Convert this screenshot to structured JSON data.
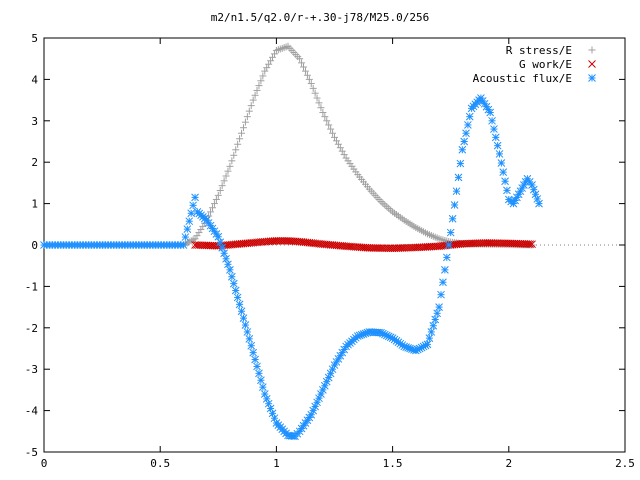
{
  "chart_data": {
    "type": "scatter",
    "title": "m2/n1.5/q2.0/r-+.30-j78/M25.0/256",
    "xlim": [
      0,
      2.5
    ],
    "ylim": [
      -5,
      5
    ],
    "x_ticks": [
      "0",
      "0.5",
      "1",
      "1.5",
      "2",
      "2.5"
    ],
    "y_ticks": [
      "-5",
      "-4",
      "-3",
      "-2",
      "-1",
      "0",
      "1",
      "2",
      "3",
      "4",
      "5"
    ],
    "legend_position": "top-right",
    "grid": false,
    "series": [
      {
        "name": "R stress/E",
        "marker": "plus",
        "color": "#a0a0a0",
        "x": [
          0,
          0.6,
          0.65,
          0.7,
          0.75,
          0.8,
          0.85,
          0.9,
          0.95,
          1.0,
          1.05,
          1.1,
          1.15,
          1.2,
          1.25,
          1.3,
          1.35,
          1.4,
          1.45,
          1.5,
          1.55,
          1.6,
          1.65,
          1.7,
          1.75,
          1.8,
          2.1
        ],
        "y": [
          0,
          0,
          0.15,
          0.6,
          1.2,
          1.9,
          2.7,
          3.5,
          4.2,
          4.7,
          4.8,
          4.5,
          3.9,
          3.2,
          2.6,
          2.1,
          1.7,
          1.35,
          1.05,
          0.8,
          0.6,
          0.42,
          0.27,
          0.15,
          0.07,
          0.03,
          0.0
        ]
      },
      {
        "name": "G work/E",
        "marker": "cross",
        "color": "#cc0000",
        "x": [
          0.65,
          0.75,
          0.85,
          0.95,
          1.0,
          1.05,
          1.1,
          1.15,
          1.2,
          1.3,
          1.4,
          1.5,
          1.6,
          1.7,
          1.75,
          1.8,
          1.9,
          2.0,
          2.1
        ],
        "y": [
          0.0,
          -0.02,
          0.03,
          0.08,
          0.1,
          0.1,
          0.08,
          0.05,
          0.02,
          -0.03,
          -0.07,
          -0.08,
          -0.06,
          -0.03,
          0.0,
          0.03,
          0.05,
          0.04,
          0.02
        ]
      },
      {
        "name": "Acoustic flux/E",
        "marker": "star",
        "color": "#1e90ff",
        "x": [
          0,
          0.3,
          0.6,
          0.65,
          0.66,
          0.7,
          0.75,
          0.8,
          0.85,
          0.9,
          0.95,
          1.0,
          1.05,
          1.08,
          1.1,
          1.15,
          1.2,
          1.25,
          1.3,
          1.35,
          1.4,
          1.45,
          1.5,
          1.55,
          1.6,
          1.65,
          1.7,
          1.75,
          1.8,
          1.84,
          1.88,
          1.92,
          1.96,
          2.0,
          2.02,
          2.05,
          2.08,
          2.1,
          2.13
        ],
        "y": [
          0,
          0,
          0,
          1.15,
          0.8,
          0.6,
          0.2,
          -0.6,
          -1.6,
          -2.6,
          -3.6,
          -4.3,
          -4.6,
          -4.62,
          -4.5,
          -4.1,
          -3.5,
          -2.9,
          -2.45,
          -2.2,
          -2.1,
          -2.12,
          -2.25,
          -2.45,
          -2.55,
          -2.4,
          -1.5,
          0.3,
          2.3,
          3.3,
          3.55,
          3.2,
          2.2,
          1.1,
          1.0,
          1.3,
          1.6,
          1.45,
          1.0
        ]
      }
    ]
  }
}
